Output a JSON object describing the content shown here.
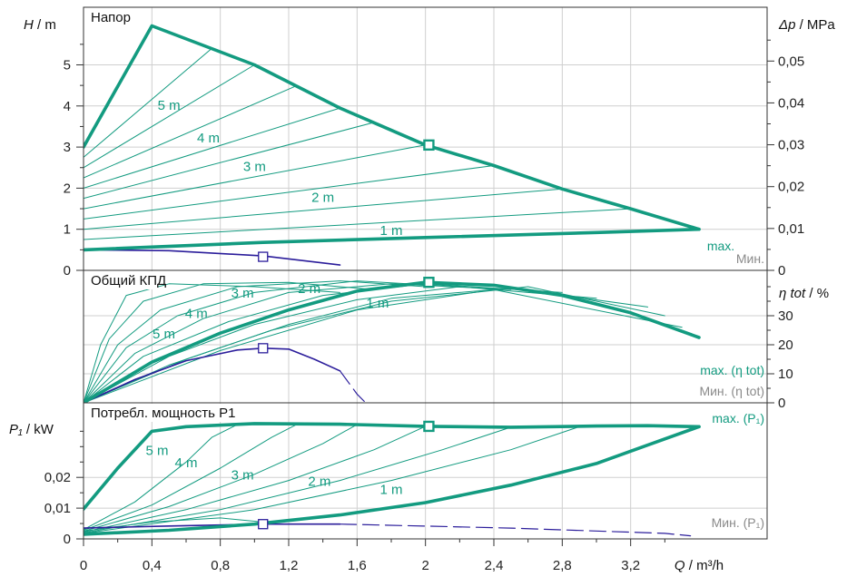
{
  "chart_data": [
    {
      "type": "line",
      "title": "Напор",
      "ylabel": "H",
      "yunit": "m",
      "ylabel_right": "Δp",
      "yunit_right": "MPa",
      "xlim": [
        0,
        3.6
      ],
      "ylim": [
        0,
        6
      ],
      "yticks": [
        0,
        1,
        2,
        3,
        4,
        5
      ],
      "yticks_right": [
        "0",
        "0,01",
        "0,02",
        "0,03",
        "0,04",
        "0,05"
      ],
      "series": [
        {
          "name": "max.",
          "role": "max",
          "points": [
            [
              0,
              3.0
            ],
            [
              0.4,
              5.95
            ],
            [
              1.0,
              5.0
            ],
            [
              1.5,
              3.95
            ],
            [
              2.0,
              3.05
            ],
            [
              2.4,
              2.55
            ],
            [
              2.8,
              1.98
            ],
            [
              3.2,
              1.5
            ],
            [
              3.6,
              1.0
            ]
          ]
        },
        {
          "name": "Мин.",
          "role": "min",
          "points": [
            [
              0,
              0.5
            ],
            [
              1.05,
              0.68
            ],
            [
              2.0,
              0.8
            ],
            [
              3.0,
              0.92
            ],
            [
              3.6,
              1.0
            ]
          ]
        },
        {
          "role": "const",
          "points": [
            [
              0,
              0.5
            ],
            [
              0.5,
              0.48
            ],
            [
              1.05,
              0.35
            ],
            [
              1.5,
              0.13
            ]
          ]
        },
        {
          "role": "thin",
          "points": [
            [
              0,
              2.75
            ],
            [
              0.75,
              5.4
            ]
          ]
        },
        {
          "role": "thin",
          "points": [
            [
              0,
              2.5
            ],
            [
              1.0,
              5.0
            ]
          ]
        },
        {
          "role": "thin",
          "points": [
            [
              0,
              2.25
            ],
            [
              1.25,
              4.5
            ]
          ]
        },
        {
          "role": "thin",
          "points": [
            [
              0,
              2.0
            ],
            [
              1.5,
              3.95
            ]
          ]
        },
        {
          "role": "thin",
          "points": [
            [
              0,
              1.75
            ],
            [
              1.7,
              3.6
            ]
          ]
        },
        {
          "role": "thin",
          "points": [
            [
              0,
              1.5
            ],
            [
              2.0,
              3.05
            ]
          ]
        },
        {
          "role": "thin",
          "points": [
            [
              0,
              1.25
            ],
            [
              2.4,
              2.55
            ]
          ]
        },
        {
          "role": "thin",
          "points": [
            [
              0,
              1.0
            ],
            [
              2.8,
              1.98
            ]
          ]
        },
        {
          "role": "thin",
          "points": [
            [
              0,
              0.75
            ],
            [
              3.2,
              1.5
            ]
          ]
        }
      ],
      "curve_labels": [
        {
          "text": "5 m",
          "x": 0.5,
          "y": 4.0
        },
        {
          "text": "4 m",
          "x": 0.73,
          "y": 3.2
        },
        {
          "text": "3 m",
          "x": 1.0,
          "y": 2.5
        },
        {
          "text": "2 m",
          "x": 1.4,
          "y": 1.75
        },
        {
          "text": "1 m",
          "x": 1.8,
          "y": 0.95
        }
      ],
      "markers": [
        [
          2.02,
          3.05
        ],
        [
          1.05,
          0.33
        ]
      ],
      "legend": [
        {
          "text": "max.",
          "style": "teal"
        },
        {
          "text": "Мин.",
          "style": "grey"
        }
      ]
    },
    {
      "type": "line",
      "title": "Общий КПД",
      "ylabel": "η tot",
      "yunit": "%",
      "ylim": [
        0,
        45
      ],
      "yticks": [
        0,
        10,
        20,
        30
      ],
      "series": [
        {
          "name": "max. (η tot)",
          "role": "max",
          "points": [
            [
              0,
              0
            ],
            [
              0.4,
              14
            ],
            [
              0.8,
              24
            ],
            [
              1.2,
              32
            ],
            [
              1.6,
              38.5
            ],
            [
              2.0,
              41.5
            ],
            [
              2.4,
              40.5
            ],
            [
              2.8,
              37
            ],
            [
              3.2,
              31
            ],
            [
              3.6,
              22.5
            ]
          ]
        },
        {
          "name": "Мин. (η tot)",
          "role": "min",
          "points": [
            [
              0,
              0
            ],
            [
              0.3,
              8
            ],
            [
              0.6,
              14.5
            ],
            [
              0.9,
              18.2
            ],
            [
              1.05,
              18.8
            ],
            [
              1.2,
              18.5
            ],
            [
              1.35,
              15
            ],
            [
              1.5,
              11
            ]
          ]
        },
        {
          "role": "min-dash",
          "points": [
            [
              1.5,
              11
            ],
            [
              1.6,
              3
            ],
            [
              1.65,
              0
            ]
          ]
        },
        {
          "role": "thin",
          "points": [
            [
              0,
              0
            ],
            [
              0.1,
              20
            ],
            [
              0.25,
              37
            ],
            [
              0.5,
              41
            ],
            [
              1.0,
              40
            ],
            [
              1.5,
              38
            ]
          ]
        },
        {
          "role": "thin",
          "points": [
            [
              0,
              0
            ],
            [
              0.15,
              22
            ],
            [
              0.35,
              35
            ],
            [
              0.7,
              41
            ],
            [
              1.2,
              41.5
            ],
            [
              1.7,
              39
            ]
          ]
        },
        {
          "role": "thin",
          "points": [
            [
              0,
              0
            ],
            [
              0.2,
              20
            ],
            [
              0.45,
              32
            ],
            [
              0.9,
              40
            ],
            [
              1.5,
              42
            ],
            [
              2.0,
              40
            ]
          ]
        },
        {
          "role": "thin",
          "points": [
            [
              0,
              0
            ],
            [
              0.25,
              19
            ],
            [
              0.55,
              30
            ],
            [
              1.0,
              38
            ],
            [
              1.6,
              42
            ],
            [
              2.2,
              40
            ]
          ]
        },
        {
          "role": "thin",
          "points": [
            [
              0,
              0
            ],
            [
              0.3,
              17
            ],
            [
              0.7,
              29
            ],
            [
              1.2,
              38
            ],
            [
              1.8,
              41
            ],
            [
              2.5,
              39
            ]
          ]
        },
        {
          "role": "thin",
          "points": [
            [
              0,
              0
            ],
            [
              0.35,
              16
            ],
            [
              0.85,
              28
            ],
            [
              1.4,
              37
            ],
            [
              2.0,
              41
            ],
            [
              2.8,
              38
            ]
          ]
        },
        {
          "role": "thin",
          "points": [
            [
              0,
              0
            ],
            [
              0.5,
              16
            ],
            [
              1.0,
              27
            ],
            [
              1.6,
              35.5
            ],
            [
              2.2,
              40
            ],
            [
              3.0,
              36
            ]
          ]
        },
        {
          "role": "thin",
          "points": [
            [
              0,
              0
            ],
            [
              0.6,
              15
            ],
            [
              1.2,
              27
            ],
            [
              1.8,
              36
            ],
            [
              2.5,
              39.5
            ],
            [
              3.3,
              33
            ]
          ]
        },
        {
          "role": "thin",
          "points": [
            [
              0,
              0
            ],
            [
              0.5,
              13
            ],
            [
              1.1,
              25
            ],
            [
              1.8,
              35
            ],
            [
              2.6,
              40
            ],
            [
              3.4,
              30
            ]
          ]
        },
        {
          "role": "thin",
          "points": [
            [
              0,
              0
            ],
            [
              0.8,
              18
            ],
            [
              1.6,
              32
            ],
            [
              2.4,
              39
            ],
            [
              3.5,
              26
            ]
          ]
        }
      ],
      "curve_labels": [
        {
          "text": "5 m",
          "x": 0.47,
          "y": 23.5
        },
        {
          "text": "4 m",
          "x": 0.66,
          "y": 30.5
        },
        {
          "text": "3 m",
          "x": 0.93,
          "y": 37.5
        },
        {
          "text": "2 m",
          "x": 1.32,
          "y": 39
        },
        {
          "text": "1 m",
          "x": 1.72,
          "y": 34
        }
      ],
      "markers": [
        [
          2.02,
          41.5
        ],
        [
          1.05,
          18.8
        ]
      ],
      "legend": [
        {
          "text": "max. (η tot)",
          "style": "teal"
        },
        {
          "text": "Мин. (η tot)",
          "style": "grey"
        }
      ]
    },
    {
      "type": "line",
      "title": "Потребл. мощность P1",
      "ylabel": "P₁",
      "yunit": "kW",
      "xlabel": "Q",
      "xunit": "m³/h",
      "xlim": [
        0,
        3.6
      ],
      "xticks": [
        "0",
        "0,4",
        "0,8",
        "1,2",
        "1,6",
        "2",
        "2,4",
        "2,8",
        "3,2",
        "Q"
      ],
      "ylim": [
        0,
        0.04
      ],
      "yticks": [
        "0",
        "0,01",
        "0,02",
        "P₁"
      ],
      "series": [
        {
          "name": "max. (P₁)",
          "role": "max",
          "points": [
            [
              0,
              0.0097
            ],
            [
              0.2,
              0.023
            ],
            [
              0.4,
              0.035
            ],
            [
              0.6,
              0.0365
            ],
            [
              1.0,
              0.0375
            ],
            [
              1.5,
              0.0373
            ],
            [
              2.0,
              0.0366
            ],
            [
              2.5,
              0.0363
            ],
            [
              3.0,
              0.0367
            ],
            [
              3.3,
              0.0368
            ],
            [
              3.6,
              0.0365
            ]
          ]
        },
        {
          "name": "Мин. (P₁)",
          "role": "min",
          "points": [
            [
              0,
              0.0015
            ],
            [
              0.5,
              0.0028
            ],
            [
              1.0,
              0.0048
            ],
            [
              1.5,
              0.0078
            ],
            [
              2.0,
              0.0118
            ],
            [
              2.5,
              0.0175
            ],
            [
              3.0,
              0.0245
            ],
            [
              3.3,
              0.0305
            ],
            [
              3.6,
              0.0365
            ]
          ]
        },
        {
          "role": "const",
          "points": [
            [
              0,
              0.0035
            ],
            [
              0.5,
              0.0042
            ],
            [
              1.05,
              0.0048
            ],
            [
              1.5,
              0.0048
            ]
          ]
        },
        {
          "role": "min-dash",
          "points": [
            [
              1.5,
              0.0048
            ],
            [
              2.5,
              0.0035
            ],
            [
              3.4,
              0.0018
            ],
            [
              3.55,
              0.001
            ]
          ]
        },
        {
          "role": "thin",
          "points": [
            [
              0,
              0.0025
            ],
            [
              0.4,
              0.0055
            ],
            [
              0.8,
              0.0068
            ],
            [
              1.1,
              0.0052
            ]
          ]
        },
        {
          "role": "thin",
          "points": [
            [
              0,
              0.003
            ],
            [
              0.3,
              0.012
            ],
            [
              0.6,
              0.025
            ],
            [
              0.75,
              0.033
            ],
            [
              0.9,
              0.0372
            ]
          ]
        },
        {
          "role": "thin",
          "points": [
            [
              0,
              0.0028
            ],
            [
              0.4,
              0.011
            ],
            [
              0.8,
              0.023
            ],
            [
              1.1,
              0.033
            ],
            [
              1.25,
              0.0373
            ]
          ]
        },
        {
          "role": "thin",
          "points": [
            [
              0,
              0.0025
            ],
            [
              0.5,
              0.0105
            ],
            [
              1.0,
              0.021
            ],
            [
              1.4,
              0.031
            ],
            [
              1.6,
              0.0372
            ]
          ]
        },
        {
          "role": "thin",
          "points": [
            [
              0,
              0.0022
            ],
            [
              0.6,
              0.0095
            ],
            [
              1.2,
              0.019
            ],
            [
              1.7,
              0.029
            ],
            [
              2.0,
              0.0366
            ]
          ]
        },
        {
          "role": "thin",
          "points": [
            [
              0,
              0.002
            ],
            [
              0.8,
              0.0095
            ],
            [
              1.5,
              0.019
            ],
            [
              2.1,
              0.029
            ],
            [
              2.5,
              0.0363
            ]
          ]
        },
        {
          "role": "thin",
          "points": [
            [
              0,
              0.0018
            ],
            [
              1.0,
              0.0095
            ],
            [
              1.8,
              0.019
            ],
            [
              2.5,
              0.029
            ],
            [
              2.9,
              0.0365
            ]
          ]
        }
      ],
      "curve_labels": [
        {
          "text": "5 m",
          "x": 0.43,
          "y": 0.0285
        },
        {
          "text": "4 m",
          "x": 0.6,
          "y": 0.0245
        },
        {
          "text": "3 m",
          "x": 0.93,
          "y": 0.0205
        },
        {
          "text": "2 m",
          "x": 1.38,
          "y": 0.0185
        },
        {
          "text": "1 m",
          "x": 1.8,
          "y": 0.0158
        }
      ],
      "markers": [
        [
          2.02,
          0.0366
        ],
        [
          1.05,
          0.0048
        ]
      ],
      "legend": [
        {
          "text": "max. (P₁)",
          "style": "teal"
        },
        {
          "text": "Мин. (P₁)",
          "style": "grey"
        }
      ]
    }
  ]
}
